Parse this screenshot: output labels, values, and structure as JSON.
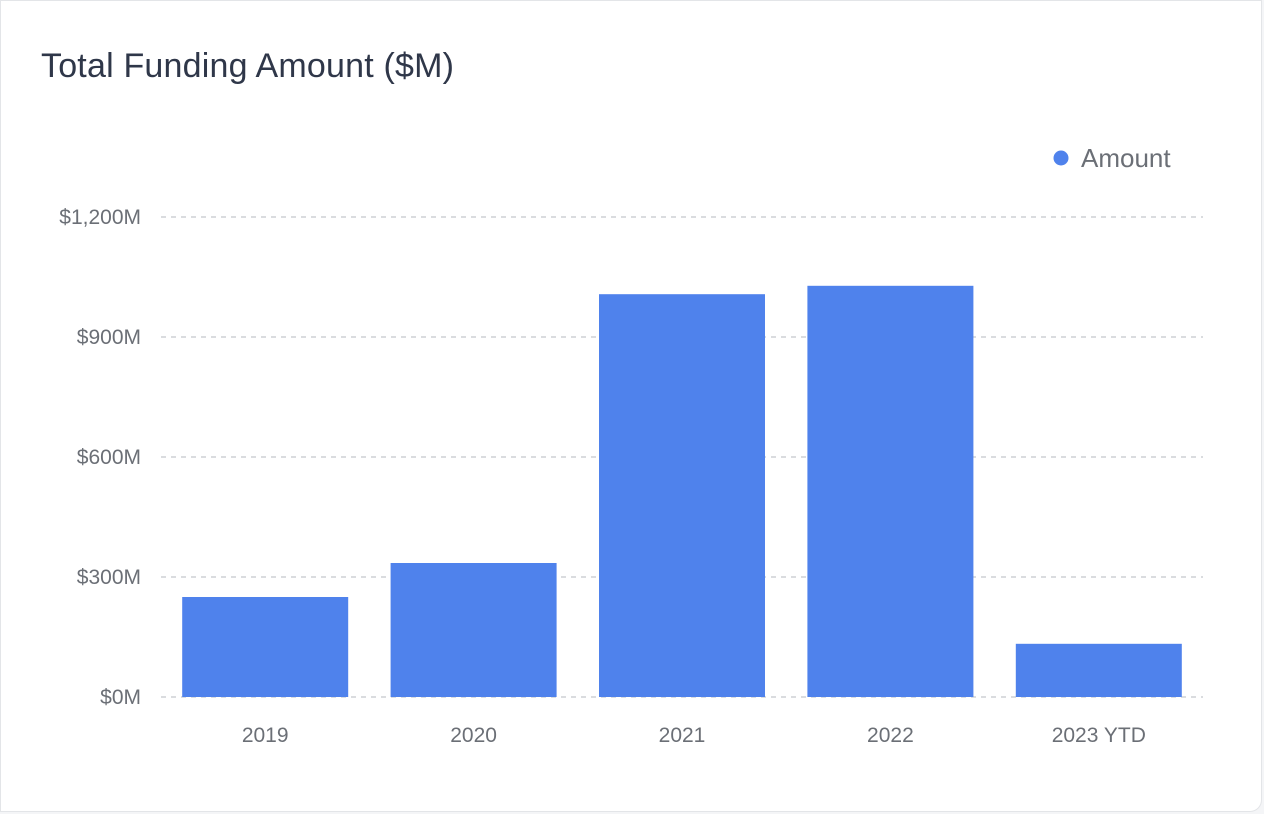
{
  "chart_data": {
    "type": "bar",
    "title": "Total Funding Amount ($M)",
    "xlabel": "",
    "ylabel": "",
    "categories": [
      "2019",
      "2020",
      "2021",
      "2022",
      "2023 YTD"
    ],
    "series": [
      {
        "name": "Amount",
        "values": [
          250,
          335,
          1007,
          1028,
          133
        ],
        "color": "#4f82ec"
      }
    ],
    "ylim": [
      0,
      1200
    ],
    "yticks": [
      0,
      300,
      600,
      900,
      1200
    ],
    "ytick_labels": [
      "$0M",
      "$300M",
      "$600M",
      "$900M",
      "$1,200M"
    ],
    "grid": true,
    "legend_position": "top-right"
  }
}
